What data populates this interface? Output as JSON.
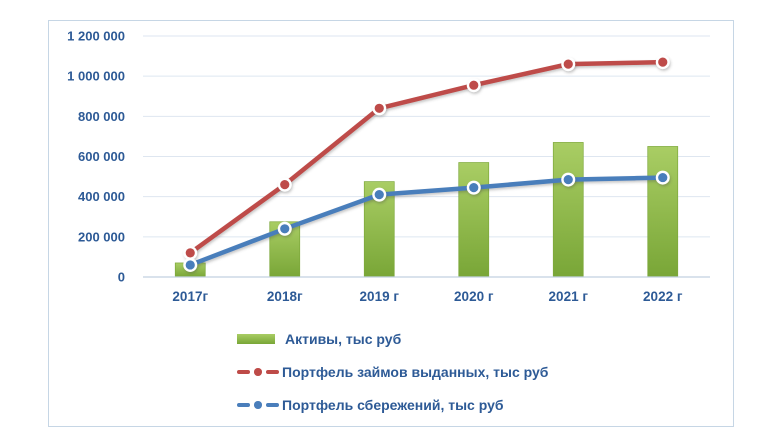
{
  "chart_data": {
    "type": "bar",
    "title": "",
    "xlabel": "",
    "ylabel": "",
    "categories": [
      "2017г",
      "2018г",
      "2019 г",
      "2020 г",
      "2021 г",
      "2022 г"
    ],
    "series": [
      {
        "name": "Активы, тыс руб",
        "type": "bar",
        "color": "#8CB93F",
        "color_light": "#A9CD64",
        "color_dark": "#79A637",
        "values": [
          70000,
          275000,
          475000,
          570000,
          670000,
          650000
        ]
      },
      {
        "name": "Портфель займов выданных, тыс руб",
        "type": "line",
        "color": "#BE4B48",
        "values": [
          120000,
          460000,
          840000,
          955000,
          1060000,
          1070000
        ]
      },
      {
        "name": "Портфель сбережений, тыс руб",
        "type": "line",
        "color": "#4A7EBB",
        "values": [
          60000,
          240000,
          410000,
          445000,
          485000,
          495000
        ]
      }
    ],
    "ylim": [
      0,
      1200000
    ],
    "ytick_interval": 200000,
    "ytick_labels": [
      "0",
      "200 000",
      "400 000",
      "600 000",
      "800 000",
      "1 000 000",
      "1 200 000"
    ],
    "grid": true,
    "legend_position": "bottom-left"
  },
  "colors": {
    "axis_text": "#2D5A96",
    "gridline": "#DEE6F0",
    "axis_line": "#C2D1E1",
    "frame_border": "#C6D6E5",
    "background": "#FFFFFF"
  }
}
